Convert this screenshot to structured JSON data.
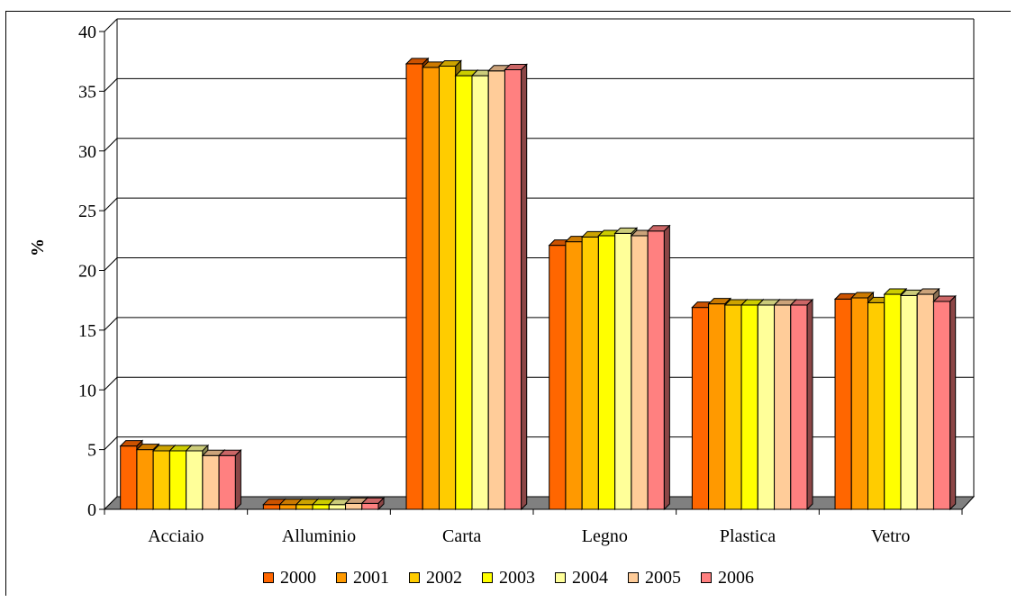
{
  "chart_data": {
    "type": "bar",
    "ylabel": "%",
    "xlabel": "",
    "ylim": [
      0,
      40
    ],
    "yticks": [
      "0",
      "5",
      "10",
      "15",
      "20",
      "25",
      "30",
      "35",
      "40"
    ],
    "grid": true,
    "legend_position": "bottom",
    "categories": [
      "Acciaio",
      "Alluminio",
      "Carta",
      "Legno",
      "Plastica",
      "Vetro"
    ],
    "series": [
      {
        "name": "2000",
        "color": "#FF6600",
        "values": [
          5.3,
          0.4,
          37.3,
          22.1,
          16.9,
          17.6
        ]
      },
      {
        "name": "2001",
        "color": "#FF9900",
        "values": [
          5.0,
          0.4,
          37.0,
          22.4,
          17.2,
          17.7
        ]
      },
      {
        "name": "2002",
        "color": "#FFCC00",
        "values": [
          4.9,
          0.4,
          37.1,
          22.8,
          17.1,
          17.3
        ]
      },
      {
        "name": "2003",
        "color": "#FFFF00",
        "values": [
          4.9,
          0.4,
          36.3,
          22.9,
          17.1,
          18.0
        ]
      },
      {
        "name": "2004",
        "color": "#FFFF99",
        "values": [
          4.9,
          0.4,
          36.3,
          23.1,
          17.1,
          17.9
        ]
      },
      {
        "name": "2005",
        "color": "#FFCC99",
        "values": [
          4.5,
          0.5,
          36.7,
          22.9,
          17.1,
          18.0
        ]
      },
      {
        "name": "2006",
        "color": "#FF8080",
        "values": [
          4.5,
          0.5,
          36.8,
          23.3,
          17.1,
          17.4
        ]
      }
    ]
  }
}
